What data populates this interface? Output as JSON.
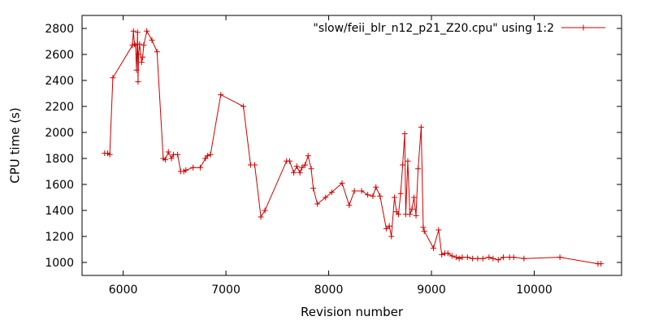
{
  "chart_data": {
    "type": "line",
    "xlabel": "Revision number",
    "ylabel": "CPU time (s)",
    "xlim": [
      5600,
      10850
    ],
    "ylim": [
      900,
      2900
    ],
    "xticks": [
      6000,
      7000,
      8000,
      9000,
      10000
    ],
    "yticks": [
      1000,
      1200,
      1400,
      1600,
      1800,
      2000,
      2200,
      2400,
      2600,
      2800
    ],
    "grid": false,
    "legend_position": "top-right",
    "series": [
      {
        "name": "\"slow/feii_blr_n12_p21_Z20.cpu\" using 1:2",
        "color": "#cc0000",
        "marker": "plus",
        "points": [
          [
            5820,
            1840
          ],
          [
            5850,
            1840
          ],
          [
            5870,
            1830
          ],
          [
            5900,
            2420
          ],
          [
            6090,
            2670
          ],
          [
            6100,
            2780
          ],
          [
            6110,
            2680
          ],
          [
            6120,
            2670
          ],
          [
            6130,
            2480
          ],
          [
            6140,
            2770
          ],
          [
            6145,
            2390
          ],
          [
            6150,
            2600
          ],
          [
            6160,
            2680
          ],
          [
            6180,
            2540
          ],
          [
            6190,
            2580
          ],
          [
            6200,
            2670
          ],
          [
            6230,
            2780
          ],
          [
            6280,
            2710
          ],
          [
            6330,
            2620
          ],
          [
            6390,
            1800
          ],
          [
            6410,
            1790
          ],
          [
            6440,
            1850
          ],
          [
            6470,
            1800
          ],
          [
            6490,
            1830
          ],
          [
            6530,
            1830
          ],
          [
            6560,
            1700
          ],
          [
            6590,
            1700
          ],
          [
            6610,
            1710
          ],
          [
            6680,
            1730
          ],
          [
            6750,
            1730
          ],
          [
            6800,
            1800
          ],
          [
            6820,
            1820
          ],
          [
            6850,
            1830
          ],
          [
            6950,
            2290
          ],
          [
            7170,
            2200
          ],
          [
            7240,
            1750
          ],
          [
            7280,
            1750
          ],
          [
            7340,
            1350
          ],
          [
            7380,
            1400
          ],
          [
            7590,
            1780
          ],
          [
            7620,
            1780
          ],
          [
            7660,
            1690
          ],
          [
            7690,
            1740
          ],
          [
            7720,
            1690
          ],
          [
            7740,
            1730
          ],
          [
            7770,
            1750
          ],
          [
            7800,
            1820
          ],
          [
            7830,
            1720
          ],
          [
            7850,
            1570
          ],
          [
            7890,
            1450
          ],
          [
            7970,
            1500
          ],
          [
            8030,
            1540
          ],
          [
            8130,
            1610
          ],
          [
            8200,
            1440
          ],
          [
            8250,
            1550
          ],
          [
            8320,
            1550
          ],
          [
            8380,
            1520
          ],
          [
            8430,
            1510
          ],
          [
            8460,
            1580
          ],
          [
            8500,
            1510
          ],
          [
            8560,
            1260
          ],
          [
            8590,
            1280
          ],
          [
            8610,
            1200
          ],
          [
            8640,
            1500
          ],
          [
            8660,
            1390
          ],
          [
            8680,
            1370
          ],
          [
            8700,
            1530
          ],
          [
            8720,
            1750
          ],
          [
            8740,
            1990
          ],
          [
            8750,
            1370
          ],
          [
            8770,
            1780
          ],
          [
            8790,
            1370
          ],
          [
            8810,
            1410
          ],
          [
            8830,
            1500
          ],
          [
            8850,
            1360
          ],
          [
            8870,
            1720
          ],
          [
            8900,
            2040
          ],
          [
            8920,
            1270
          ],
          [
            8930,
            1240
          ],
          [
            9020,
            1110
          ],
          [
            9070,
            1250
          ],
          [
            9100,
            1060
          ],
          [
            9130,
            1070
          ],
          [
            9160,
            1070
          ],
          [
            9200,
            1050
          ],
          [
            9240,
            1040
          ],
          [
            9270,
            1030
          ],
          [
            9300,
            1040
          ],
          [
            9350,
            1040
          ],
          [
            9400,
            1030
          ],
          [
            9450,
            1030
          ],
          [
            9500,
            1030
          ],
          [
            9560,
            1040
          ],
          [
            9600,
            1030
          ],
          [
            9650,
            1020
          ],
          [
            9700,
            1040
          ],
          [
            9760,
            1040
          ],
          [
            9800,
            1040
          ],
          [
            9900,
            1030
          ],
          [
            10250,
            1040
          ],
          [
            10620,
            990
          ],
          [
            10650,
            990
          ]
        ]
      }
    ]
  }
}
